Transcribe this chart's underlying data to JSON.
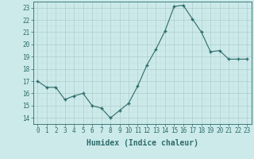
{
  "x": [
    0,
    1,
    2,
    3,
    4,
    5,
    6,
    7,
    8,
    9,
    10,
    11,
    12,
    13,
    14,
    15,
    16,
    17,
    18,
    19,
    20,
    21,
    22,
    23
  ],
  "y": [
    17.0,
    16.5,
    16.5,
    15.5,
    15.8,
    16.0,
    15.0,
    14.8,
    14.0,
    14.6,
    15.2,
    16.6,
    18.3,
    19.6,
    21.1,
    23.1,
    23.2,
    22.1,
    21.0,
    19.4,
    19.5,
    18.8,
    18.8,
    18.8
  ],
  "line_color": "#2e6b6b",
  "marker_color": "#2e6b6b",
  "bg_color": "#cceaea",
  "grid_major_color": "#b0cccc",
  "grid_minor_color": "#c0dede",
  "xlabel": "Humidex (Indice chaleur)",
  "ylim": [
    13.5,
    23.5
  ],
  "xlim": [
    -0.5,
    23.5
  ],
  "yticks": [
    14,
    15,
    16,
    17,
    18,
    19,
    20,
    21,
    22,
    23
  ],
  "xticks": [
    0,
    1,
    2,
    3,
    4,
    5,
    6,
    7,
    8,
    9,
    10,
    11,
    12,
    13,
    14,
    15,
    16,
    17,
    18,
    19,
    20,
    21,
    22,
    23
  ],
  "tick_label_color": "#2e6b6b",
  "axis_color": "#2e6b6b",
  "xlabel_color": "#2e6b6b",
  "xlabel_fontsize": 7,
  "tick_fontsize": 5.5
}
